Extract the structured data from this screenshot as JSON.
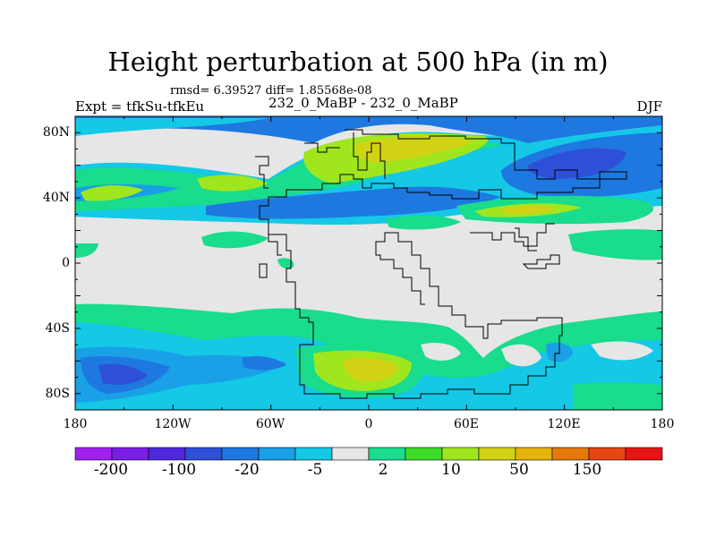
{
  "header": {
    "title": "Height perturbation at 500 hPa (in m)",
    "stats": "rmsd= 6.39527 diff= 1.85568e-08",
    "left_label": "Expt = tfkSu-tfkEu",
    "center_label": "232_0_MaBP - 232_0_MaBP",
    "right_label": "DJF"
  },
  "map": {
    "lat_labels": [
      "80N",
      "40N",
      "0",
      "40S",
      "80S"
    ],
    "lon_labels": [
      "180",
      "120W",
      "60W",
      "0",
      "60E",
      "120E",
      "180"
    ],
    "background_color": "#e6e6e6"
  },
  "colorbar": {
    "colors": [
      "#a020f0",
      "#7a1ee6",
      "#4d28dc",
      "#2e4fd8",
      "#1e78e0",
      "#19a0e6",
      "#14c8e6",
      "#e6e6e6",
      "#19dc8c",
      "#3cdc28",
      "#a0e61e",
      "#d2d214",
      "#e6b40a",
      "#e6780a",
      "#e64614",
      "#e61414"
    ],
    "labels": [
      "-200",
      "-100",
      "-20",
      "-5",
      "2",
      "10",
      "50",
      "150"
    ]
  }
}
